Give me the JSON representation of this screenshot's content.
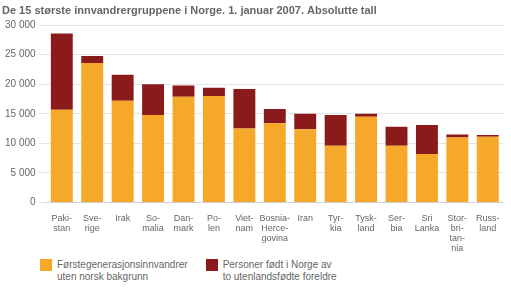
{
  "chart_data": {
    "type": "bar",
    "title": "De 15 største innvandrergruppene i Norge. 1. januar 2007. Absolutte tall",
    "categories": [
      "Paki-\nstan",
      "Sve-\nrige",
      "Irak",
      "So-\nmalia",
      "Dan-\nmark",
      "Po-\nlen",
      "Viet-\nnam",
      "Bosnia-\nHerce-\ngovina",
      "Iran",
      "Tyr-\nkia",
      "Tysk-\nland",
      "Ser-\nbia",
      "Sri\nLanka",
      "Stor-\nbri-\ntan-\nnia",
      "Russ-\nland"
    ],
    "series": [
      {
        "name": "Førstegenerasjonsinnvandrer\nuten norsk bakgrunn",
        "color": "#F5A82A",
        "values": [
          15700,
          23600,
          17200,
          14800,
          17900,
          18000,
          12500,
          13400,
          12400,
          9600,
          14500,
          9600,
          8200,
          11000,
          11100
        ]
      },
      {
        "name": "Personer født i Norge av\nto utenlandsfødte foreldre",
        "color": "#8B1A1A",
        "values": [
          12900,
          1200,
          4400,
          5200,
          1900,
          1400,
          6700,
          2400,
          2600,
          5200,
          500,
          3200,
          4900,
          500,
          300
        ]
      }
    ],
    "stacked": true,
    "ylim": [
      0,
      30000
    ],
    "yticks": [
      0,
      {
        "value": 5000,
        "label": "5 000"
      },
      {
        "value": 10000,
        "label": "10 000"
      },
      {
        "value": 15000,
        "label": "15 000"
      },
      {
        "value": 20000,
        "label": "20 000"
      },
      {
        "value": 25000,
        "label": "25 000"
      },
      {
        "value": 30000,
        "label": "30 000"
      }
    ],
    "grid": true
  }
}
